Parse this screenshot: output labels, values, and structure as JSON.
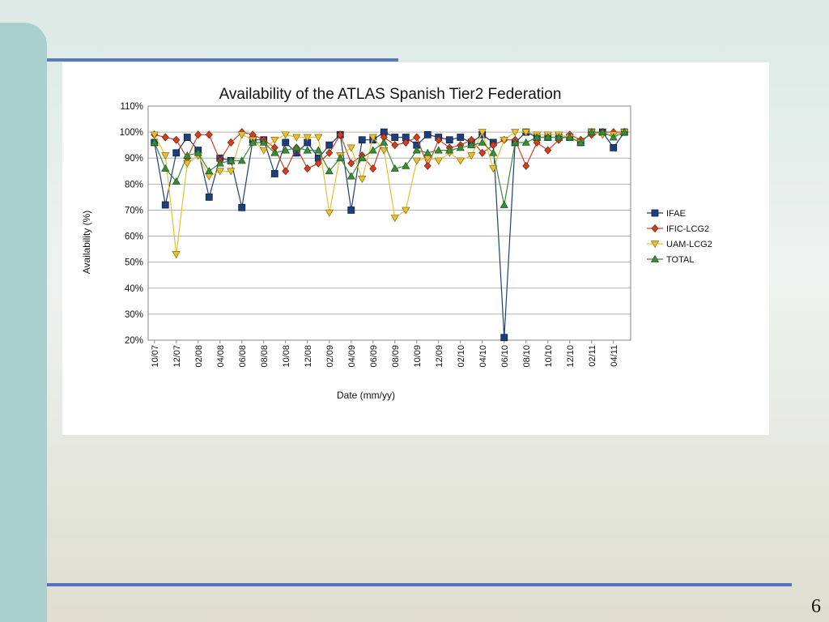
{
  "slide": {
    "number": "6"
  },
  "colors": {
    "IFAE": "#1f3f7a",
    "IFIC-LCG2": "#d04020",
    "UAM-LCG2": "#e8c030",
    "TOTAL": "#3a8a3a",
    "left_bar": "#a9d0cf",
    "rule": "#5570c8"
  },
  "chart_data": {
    "type": "line",
    "title": "Availability of the ATLAS Spanish Tier2 Federation",
    "xlabel": "Date (mm/yy)",
    "ylabel": "Availability (%)",
    "ylim": [
      20,
      110
    ],
    "yticks": [
      "20%",
      "30%",
      "40%",
      "50%",
      "60%",
      "70%",
      "80%",
      "90%",
      "100%",
      "110%"
    ],
    "grid": true,
    "legend_position": "right",
    "x": [
      "10/07",
      "11/07",
      "12/07",
      "01/08",
      "02/08",
      "03/08",
      "04/08",
      "05/08",
      "06/08",
      "07/08",
      "08/08",
      "09/08",
      "10/08",
      "11/08",
      "12/08",
      "01/09",
      "02/09",
      "03/09",
      "04/09",
      "05/09",
      "06/09",
      "07/09",
      "08/09",
      "09/09",
      "10/09",
      "11/09",
      "12/09",
      "01/10",
      "02/10",
      "03/10",
      "04/10",
      "05/10",
      "06/10",
      "07/10",
      "08/10",
      "09/10",
      "10/10",
      "11/10",
      "12/10",
      "01/11",
      "02/11",
      "03/11",
      "04/11",
      "05/11"
    ],
    "xtick_labels": [
      "10/07",
      "12/07",
      "02/08",
      "04/08",
      "06/08",
      "08/08",
      "10/08",
      "12/08",
      "02/09",
      "04/09",
      "06/09",
      "08/09",
      "10/09",
      "12/09",
      "02/10",
      "04/10",
      "06/10",
      "08/10",
      "10/10",
      "12/10",
      "02/11",
      "04/11"
    ],
    "series": [
      {
        "name": "IFAE",
        "marker": "square",
        "values": [
          96,
          72,
          92,
          98,
          93,
          75,
          90,
          89,
          71,
          97,
          97,
          84,
          96,
          92,
          96,
          90,
          95,
          99,
          70,
          97,
          97,
          100,
          98,
          98,
          95,
          99,
          98,
          97,
          98,
          96,
          99,
          96,
          21,
          96,
          100,
          98,
          98,
          98,
          98,
          96,
          100,
          100,
          94,
          100
        ]
      },
      {
        "name": "IFIC-LCG2",
        "marker": "diamond",
        "values": [
          99,
          98,
          97,
          90,
          99,
          99,
          89,
          96,
          100,
          99,
          97,
          94,
          85,
          94,
          86,
          88,
          92,
          99,
          88,
          91,
          86,
          98,
          95,
          96,
          98,
          87,
          97,
          94,
          95,
          97,
          92,
          95,
          97,
          97,
          87,
          96,
          93,
          97,
          99,
          97,
          99,
          100,
          100,
          100
        ]
      },
      {
        "name": "UAM-LCG2",
        "marker": "triangle-down",
        "values": [
          99,
          91,
          53,
          88,
          91,
          83,
          85,
          85,
          99,
          97,
          93,
          97,
          99,
          98,
          98,
          98,
          69,
          91,
          94,
          82,
          98,
          93,
          67,
          70,
          89,
          90,
          89,
          92,
          89,
          91,
          100,
          86,
          97,
          100,
          100,
          99,
          99,
          99,
          98,
          96,
          100,
          99,
          99,
          100
        ]
      },
      {
        "name": "TOTAL",
        "marker": "triangle-up",
        "values": [
          96,
          86,
          81,
          91,
          92,
          85,
          88,
          89,
          89,
          96,
          96,
          92,
          93,
          94,
          93,
          93,
          85,
          90,
          83,
          90,
          93,
          96,
          86,
          87,
          93,
          92,
          93,
          93,
          94,
          95,
          96,
          92,
          72,
          96,
          96,
          98,
          98,
          98,
          98,
          96,
          100,
          100,
          98,
          100
        ]
      }
    ]
  }
}
